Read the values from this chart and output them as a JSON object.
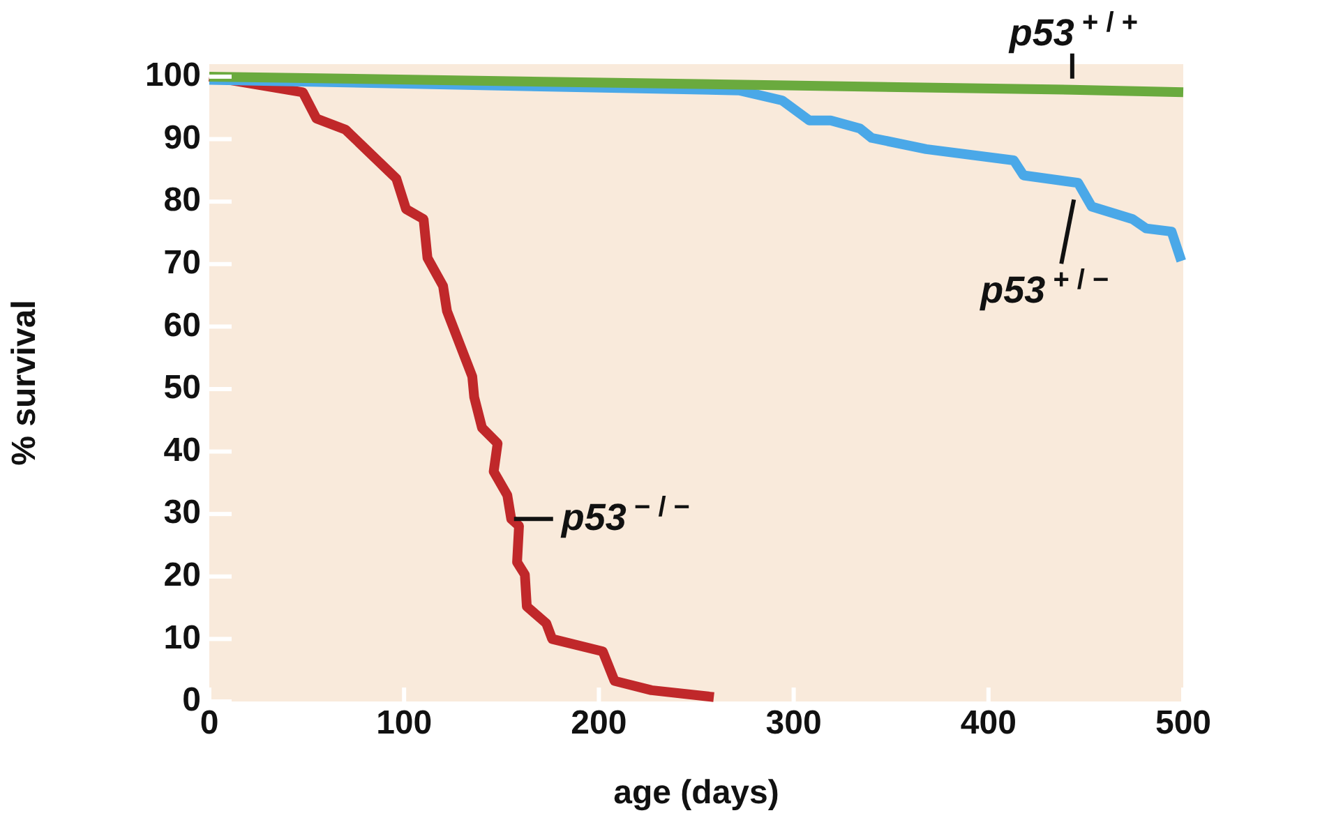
{
  "chart_data": {
    "type": "line",
    "xlabel": "age (days)",
    "ylabel": "% survival",
    "xlim": [
      0,
      500
    ],
    "ylim": [
      0,
      102
    ],
    "xticks": [
      0,
      100,
      200,
      300,
      400,
      500
    ],
    "yticks": [
      0,
      10,
      20,
      30,
      40,
      50,
      60,
      70,
      80,
      90,
      100
    ],
    "grid": false,
    "legend": false,
    "marker": "none",
    "line_style": "solid",
    "series": [
      {
        "name": "p53$^{+ / +}$",
        "color": "#6aaa3e",
        "x": [
          0,
          443,
          500
        ],
        "values": [
          100,
          97.9,
          97.5
        ]
      },
      {
        "name": "p53$^{+ / −}$",
        "color": "#4aa8e8",
        "x": [
          0,
          272,
          294,
          308,
          319,
          334,
          340,
          368,
          413,
          418,
          446,
          453,
          474,
          481,
          494,
          499
        ],
        "values": [
          99.5,
          97.8,
          96.2,
          93,
          93,
          91.7,
          90.2,
          88.4,
          86.6,
          84.2,
          83,
          79.2,
          77.2,
          75.7,
          75.2,
          70.5
        ]
      },
      {
        "name": "p53$^{− / −}$",
        "color": "#c0282a",
        "x": [
          0,
          48,
          55,
          70,
          96,
          101,
          110,
          112,
          120,
          122,
          135,
          136,
          140,
          148,
          146,
          153,
          155,
          159,
          158,
          162,
          163,
          173,
          176,
          202,
          208,
          227,
          259
        ],
        "values": [
          100,
          97.5,
          93.3,
          91.5,
          83.7,
          78.8,
          77.2,
          71,
          66.5,
          62.5,
          52,
          48.7,
          43.8,
          41.3,
          36.8,
          33,
          29.2,
          28.1,
          22.3,
          20.3,
          15.2,
          12.5,
          10,
          8,
          3.3,
          1.8,
          0.7
        ]
      }
    ]
  }
}
